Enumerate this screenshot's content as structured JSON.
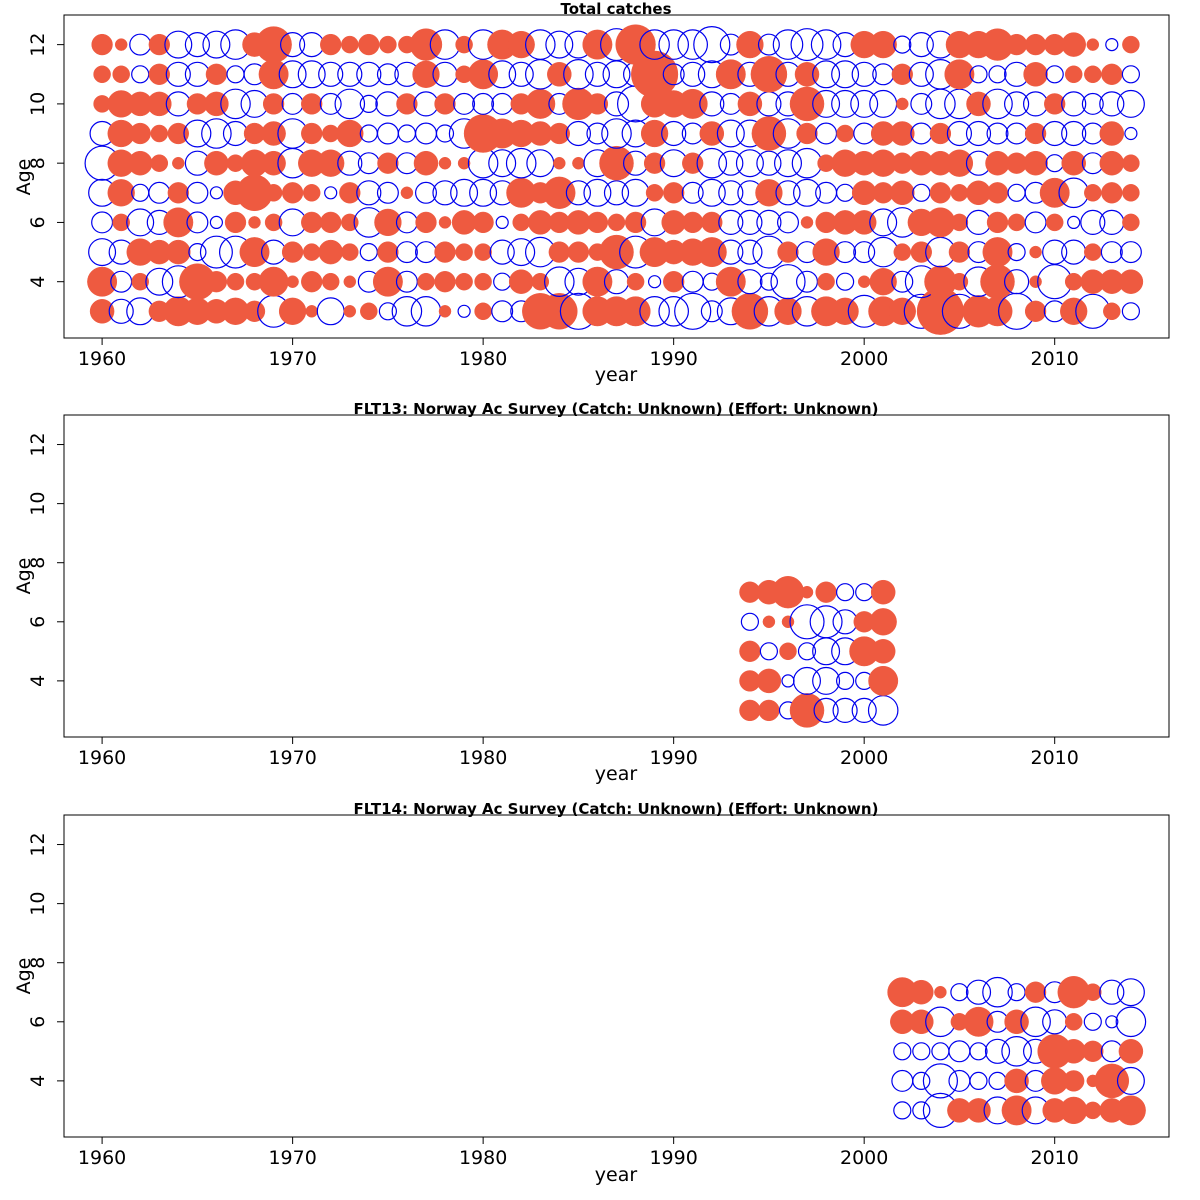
{
  "colors": {
    "positive": "#ee5a40",
    "negative": "#0000ee"
  },
  "chart_data": [
    {
      "type": "scatter",
      "title": "Total catches",
      "xlabel": "year",
      "ylabel": "Age",
      "xlim": [
        1958,
        2016
      ],
      "ylim": [
        2.1,
        13.0
      ],
      "xticks": [
        1960,
        1970,
        1980,
        1990,
        2000,
        2010
      ],
      "yticks": [
        4,
        6,
        8,
        10,
        12
      ],
      "x": [
        1960,
        1961,
        1962,
        1963,
        1964,
        1965,
        1966,
        1967,
        1968,
        1969,
        1970,
        1971,
        1972,
        1973,
        1974,
        1975,
        1976,
        1977,
        1978,
        1979,
        1980,
        1981,
        1982,
        1983,
        1984,
        1985,
        1986,
        1987,
        1988,
        1989,
        1990,
        1991,
        1992,
        1993,
        1994,
        1995,
        1996,
        1997,
        1998,
        1999,
        2000,
        2001,
        2002,
        2003,
        2004,
        2005,
        2006,
        2007,
        2008,
        2009,
        2010,
        2011,
        2012,
        2013,
        2014
      ],
      "ages": [
        3,
        4,
        5,
        6,
        7,
        8,
        9,
        10,
        11,
        12
      ],
      "bubble_note": "residual size shown by bubble area; filled = positive, open = negative",
      "values": {
        "3": [
          0.4,
          -0.4,
          -0.5,
          0.3,
          0.6,
          0.5,
          0.4,
          0.5,
          0.3,
          -0.7,
          0.5,
          0.1,
          -0.5,
          0.1,
          0.2,
          -0.2,
          -0.6,
          -0.6,
          0.1,
          -0.1,
          0.2,
          -0.3,
          -0.3,
          0.9,
          0.9,
          -0.9,
          0.6,
          0.6,
          0.6,
          -0.6,
          -0.6,
          -0.9,
          -0.3,
          -0.5,
          0.9,
          -0.6,
          0.5,
          -0.6,
          0.6,
          0.5,
          -0.7,
          0.6,
          0.5,
          -0.8,
          1.5,
          -0.8,
          0.7,
          0.6,
          -0.9,
          0.3,
          -0.3,
          0.5,
          -0.8,
          0.2,
          -0.2
        ],
        "4": [
          0.6,
          -0.3,
          0.2,
          -0.5,
          -0.7,
          0.9,
          0.3,
          0.2,
          0.2,
          0.6,
          0.1,
          0.3,
          0.2,
          0.1,
          -0.3,
          0.6,
          -0.3,
          0.2,
          0.3,
          0.2,
          0.2,
          -0.2,
          0.4,
          0.2,
          -0.6,
          -0.5,
          0.6,
          -0.4,
          0.2,
          -0.1,
          0.3,
          -0.3,
          -0.2,
          0.6,
          -0.4,
          -0.2,
          -0.8,
          -0.3,
          0.2,
          -0.2,
          0.1,
          0.5,
          -0.3,
          -0.7,
          0.7,
          0.2,
          -0.6,
          0.8,
          -0.4,
          0.1,
          -0.8,
          0.2,
          0.4,
          0.4,
          0.4
        ],
        "5": [
          -0.5,
          -0.4,
          0.5,
          0.4,
          0.4,
          -0.2,
          -0.7,
          -0.7,
          0.6,
          -0.4,
          0.3,
          0.2,
          0.4,
          0.2,
          -0.2,
          0.3,
          -0.3,
          -0.3,
          0.3,
          0.2,
          0.2,
          -0.4,
          -0.5,
          -0.6,
          0.3,
          0.3,
          0.2,
          0.8,
          -0.7,
          0.6,
          0.4,
          0.5,
          0.6,
          -0.4,
          -0.4,
          -0.7,
          0.3,
          -0.3,
          0.5,
          -0.3,
          -0.3,
          -0.6,
          0.2,
          0.3,
          -0.6,
          0.3,
          -0.3,
          0.6,
          -0.2,
          0.1,
          -0.4,
          -0.4,
          0.2,
          -0.3,
          -0.3
        ],
        "6": [
          -0.3,
          0.2,
          -0.5,
          -0.4,
          0.6,
          -0.3,
          -0.1,
          0.3,
          0.1,
          0.2,
          -0.5,
          0.3,
          0.3,
          0.2,
          -0.6,
          0.5,
          -0.3,
          0.3,
          0.1,
          0.4,
          0.3,
          -0.1,
          0.2,
          0.4,
          0.3,
          0.4,
          0.3,
          0.2,
          0.3,
          -0.5,
          0.4,
          0.3,
          0.3,
          -0.4,
          -0.4,
          -0.4,
          -0.3,
          0.1,
          0.3,
          0.4,
          0.4,
          -0.5,
          -0.6,
          0.5,
          0.6,
          0.2,
          -0.4,
          0.3,
          0.2,
          -0.3,
          0.2,
          -0.1,
          -0.4,
          -0.4,
          0.2
        ],
        "7": [
          -0.5,
          0.5,
          -0.2,
          -0.3,
          0.3,
          -0.3,
          -0.1,
          0.4,
          0.9,
          0.2,
          0.3,
          0.2,
          -0.1,
          0.3,
          -0.4,
          -0.3,
          0.1,
          -0.3,
          -0.4,
          -0.5,
          -0.5,
          -0.4,
          0.6,
          0.3,
          0.7,
          -0.4,
          -0.5,
          -0.4,
          -0.5,
          0.2,
          0.3,
          -0.3,
          -0.5,
          -0.4,
          -0.4,
          0.5,
          -0.4,
          -0.5,
          -0.3,
          -0.2,
          0.4,
          0.3,
          0.4,
          -0.2,
          0.3,
          0.2,
          0.4,
          0.3,
          -0.2,
          -0.3,
          0.6,
          -0.6,
          0.2,
          0.3,
          0.2
        ],
        "8": [
          -0.8,
          0.5,
          0.4,
          0.2,
          0.1,
          -0.4,
          0.4,
          0.2,
          0.5,
          0.4,
          -0.6,
          0.5,
          0.5,
          -0.4,
          -0.3,
          0.3,
          -0.3,
          0.4,
          0.1,
          0.1,
          -0.6,
          -0.5,
          -0.6,
          -0.5,
          0.1,
          0.1,
          -0.5,
          0.8,
          -0.4,
          0.3,
          -0.5,
          0.3,
          -0.6,
          -0.4,
          -0.5,
          -0.4,
          -0.5,
          -0.6,
          0.2,
          0.5,
          0.4,
          0.5,
          0.3,
          0.4,
          0.4,
          0.5,
          -0.4,
          0.4,
          0.3,
          0.4,
          -0.2,
          0.4,
          -0.3,
          0.4,
          0.2
        ],
        "9": [
          -0.4,
          0.5,
          0.3,
          0.2,
          0.3,
          -0.5,
          -0.6,
          -0.4,
          0.3,
          0.4,
          -0.6,
          0.3,
          0.2,
          0.5,
          -0.2,
          -0.3,
          -0.2,
          -0.3,
          -0.2,
          -0.6,
          1.0,
          0.6,
          0.5,
          0.4,
          0.3,
          -0.4,
          -0.3,
          -0.6,
          -0.5,
          0.5,
          -0.4,
          -0.3,
          0.4,
          -0.5,
          -0.5,
          0.8,
          -0.6,
          0.3,
          -0.3,
          0.2,
          -0.3,
          0.4,
          0.4,
          -0.3,
          0.3,
          -0.4,
          -0.4,
          -0.3,
          -0.3,
          0.3,
          -0.4,
          -0.4,
          -0.3,
          0.4,
          -0.1
        ],
        "10": [
          0.2,
          0.5,
          0.4,
          0.4,
          -0.4,
          0.3,
          0.4,
          -0.6,
          -0.5,
          0.3,
          -0.3,
          0.3,
          -0.3,
          -0.6,
          -0.2,
          -0.4,
          0.3,
          -0.4,
          0.3,
          -0.3,
          -0.3,
          -0.3,
          0.3,
          0.6,
          -0.3,
          0.7,
          0.3,
          -0.4,
          -0.9,
          0.5,
          0.5,
          0.6,
          -0.4,
          -0.3,
          0.4,
          -0.4,
          -0.4,
          0.8,
          -0.5,
          -0.5,
          -0.5,
          -0.5,
          0.1,
          -0.3,
          -0.6,
          -0.6,
          0.4,
          -0.6,
          -0.4,
          -0.4,
          0.3,
          -0.4,
          -0.3,
          -0.4,
          -0.5
        ],
        "11": [
          0.2,
          0.2,
          -0.2,
          0.3,
          -0.4,
          -0.4,
          0.3,
          -0.2,
          -0.3,
          0.6,
          -0.5,
          -0.5,
          -0.4,
          -0.4,
          -0.4,
          -0.3,
          -0.4,
          0.5,
          -0.4,
          0.2,
          0.6,
          -0.5,
          -0.4,
          -0.6,
          0.4,
          -0.6,
          -0.4,
          -0.5,
          -0.4,
          1.5,
          -0.3,
          -0.4,
          -0.5,
          0.6,
          -0.4,
          0.9,
          -0.4,
          0.4,
          -0.5,
          -0.5,
          -0.4,
          -0.3,
          0.3,
          -0.4,
          -0.6,
          0.6,
          -0.2,
          -0.2,
          -0.4,
          0.4,
          -0.2,
          0.2,
          0.2,
          0.3,
          -0.2
        ],
        "12": [
          0.3,
          0.1,
          -0.3,
          0.3,
          -0.5,
          -0.4,
          -0.5,
          -0.6,
          0.4,
          0.9,
          -0.4,
          -0.4,
          0.3,
          0.2,
          0.3,
          0.2,
          0.2,
          0.7,
          -0.6,
          0.2,
          -0.6,
          0.6,
          0.5,
          -0.6,
          -0.5,
          -0.5,
          0.6,
          -0.7,
          1.1,
          -0.6,
          -0.6,
          -0.6,
          -0.9,
          -0.3,
          0.5,
          -0.3,
          -0.6,
          -0.7,
          -0.6,
          -0.4,
          0.5,
          0.5,
          -0.2,
          -0.4,
          -0.5,
          0.5,
          0.5,
          0.7,
          0.3,
          0.3,
          0.3,
          0.4,
          0.1,
          -0.1,
          0.2
        ]
      }
    },
    {
      "type": "scatter",
      "title": "FLT13: Norway Ac Survey (Catch: Unknown) (Effort: Unknown)",
      "xlabel": "year",
      "ylabel": "Age",
      "xlim": [
        1958,
        2016
      ],
      "ylim": [
        2.1,
        13.0
      ],
      "xticks": [
        1960,
        1970,
        1980,
        1990,
        2000,
        2010
      ],
      "yticks": [
        4,
        6,
        8,
        10,
        12
      ],
      "x": [
        1994,
        1995,
        1996,
        1997,
        1998,
        1999,
        2000,
        2001
      ],
      "ages": [
        3,
        4,
        5,
        6,
        7
      ],
      "values": {
        "3": [
          0.3,
          0.3,
          -0.2,
          0.8,
          -0.4,
          -0.4,
          -0.4,
          -0.6
        ],
        "4": [
          0.3,
          0.4,
          -0.1,
          -0.5,
          -0.5,
          -0.2,
          -0.2,
          0.6
        ],
        "5": [
          0.3,
          -0.2,
          0.2,
          -0.2,
          -0.5,
          -0.5,
          0.6,
          0.4
        ],
        "6": [
          -0.2,
          0.1,
          0.1,
          -0.8,
          -0.7,
          -0.4,
          0.3,
          0.5
        ],
        "7": [
          0.3,
          0.4,
          0.7,
          0.1,
          0.3,
          -0.2,
          -0.2,
          0.4
        ]
      }
    },
    {
      "type": "scatter",
      "title": "FLT14: Norway Ac Survey (Catch: Unknown) (Effort: Unknown)",
      "xlabel": "year",
      "ylabel": "Age",
      "xlim": [
        1958,
        2016
      ],
      "ylim": [
        2.1,
        13.0
      ],
      "xticks": [
        1960,
        1970,
        1980,
        1990,
        2000,
        2010
      ],
      "yticks": [
        4,
        6,
        8,
        10,
        12
      ],
      "x": [
        2002,
        2003,
        2004,
        2005,
        2006,
        2007,
        2008,
        2009,
        2010,
        2011,
        2012,
        2013,
        2014
      ],
      "ages": [
        3,
        4,
        5,
        6,
        7
      ],
      "values": {
        "3": [
          -0.2,
          -0.2,
          -0.8,
          0.4,
          0.4,
          -0.5,
          0.6,
          -0.5,
          0.4,
          0.5,
          0.2,
          0.4,
          0.6
        ],
        "4": [
          -0.3,
          -0.2,
          -0.8,
          -0.3,
          -0.2,
          -0.2,
          0.4,
          -0.3,
          0.5,
          0.3,
          0.1,
          0.8,
          -0.5
        ],
        "5": [
          -0.2,
          -0.2,
          -0.2,
          -0.3,
          -0.2,
          -0.4,
          -0.6,
          -0.4,
          0.8,
          0.4,
          0.3,
          -0.3,
          0.4
        ],
        "6": [
          0.4,
          0.4,
          -0.6,
          0.2,
          0.6,
          -0.3,
          0.4,
          -0.6,
          -0.4,
          0.2,
          -0.2,
          -0.1,
          -0.6
        ],
        "7": [
          0.6,
          0.4,
          0.1,
          -0.2,
          -0.4,
          -0.6,
          -0.2,
          0.3,
          -0.3,
          0.7,
          0.2,
          -0.4,
          -0.5
        ]
      }
    }
  ]
}
